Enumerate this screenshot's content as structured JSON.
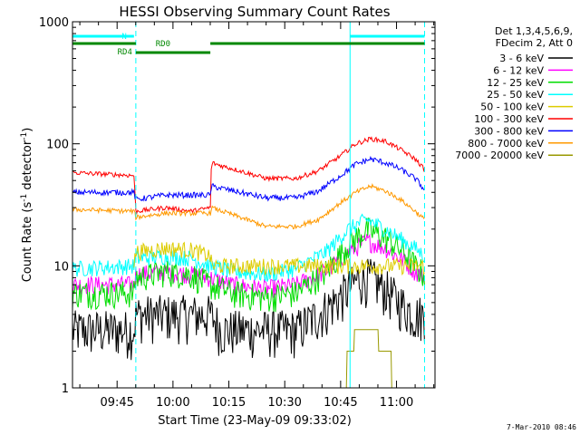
{
  "chart_data": {
    "type": "line",
    "title": "HESSI Observing Summary Count Rates",
    "xlabel": "Start Time (23-May-09 09:33:02)",
    "ylabel_prefix": "Count Rate (s",
    "ylabel_sup1": "-1",
    "ylabel_mid": " detector",
    "ylabel_sup2": "-1",
    "ylabel_suffix": ")",
    "x_axis": {
      "unit": "minutes since 09:33:02",
      "range": [
        0,
        97.3
      ]
    },
    "y_axis": {
      "scale": "log",
      "range": [
        1,
        1000
      ]
    },
    "x_ticks": [
      {
        "label": "09:45",
        "value": 11.97
      },
      {
        "label": "10:00",
        "value": 26.97
      },
      {
        "label": "10:15",
        "value": 41.97
      },
      {
        "label": "10:30",
        "value": 56.97
      },
      {
        "label": "10:45",
        "value": 71.97
      },
      {
        "label": "11:00",
        "value": 86.97
      }
    ],
    "y_ticks": [
      {
        "label": "1000",
        "value": 1000
      },
      {
        "label": "100",
        "value": 100
      },
      {
        "label": "10",
        "value": 10
      },
      {
        "label": "1",
        "value": 1
      }
    ],
    "legend_header": [
      "Det 1,3,4,5,6,9,",
      "FDecim 2, Att 0"
    ],
    "legend_placement": "right",
    "series": [
      {
        "name": "3 - 6 keV",
        "color": "#000000",
        "noise": 0.2,
        "values": [
          [
            0,
            3
          ],
          [
            16.5,
            3
          ],
          [
            17,
            4
          ],
          [
            37,
            4
          ],
          [
            40,
            3
          ],
          [
            60,
            3
          ],
          [
            66,
            4
          ],
          [
            73,
            6
          ],
          [
            77,
            8
          ],
          [
            80,
            8
          ],
          [
            84,
            6.5
          ],
          [
            88,
            5
          ],
          [
            92,
            4
          ],
          [
            94.5,
            4
          ]
        ]
      },
      {
        "name": "6 - 12 keV",
        "color": "#ff00ff",
        "noise": 0.08,
        "values": [
          [
            0,
            7
          ],
          [
            16.5,
            7
          ],
          [
            17,
            8.5
          ],
          [
            25,
            9
          ],
          [
            32,
            8.5
          ],
          [
            37,
            8
          ],
          [
            43,
            7
          ],
          [
            52,
            6.5
          ],
          [
            60,
            7
          ],
          [
            68,
            9
          ],
          [
            74,
            13
          ],
          [
            79,
            16
          ],
          [
            84,
            14
          ],
          [
            89,
            11
          ],
          [
            92,
            9
          ],
          [
            94.5,
            8
          ]
        ]
      },
      {
        "name": "12 - 25 keV",
        "color": "#00dd00",
        "noise": 0.12,
        "values": [
          [
            0,
            6
          ],
          [
            16.5,
            6
          ],
          [
            17,
            8
          ],
          [
            25,
            9
          ],
          [
            32,
            8.5
          ],
          [
            37,
            7
          ],
          [
            43,
            6
          ],
          [
            52,
            5.5
          ],
          [
            60,
            6
          ],
          [
            68,
            9
          ],
          [
            74,
            15
          ],
          [
            79,
            20
          ],
          [
            84,
            17
          ],
          [
            89,
            13
          ],
          [
            92,
            10
          ],
          [
            94.5,
            8.5
          ]
        ]
      },
      {
        "name": "25 - 50 keV",
        "color": "#00ffff",
        "noise": 0.07,
        "values": [
          [
            0,
            9.5
          ],
          [
            16.5,
            10
          ],
          [
            17,
            11.5
          ],
          [
            25,
            12
          ],
          [
            32,
            11.5
          ],
          [
            37,
            10
          ],
          [
            43,
            9
          ],
          [
            52,
            8.5
          ],
          [
            60,
            9.5
          ],
          [
            68,
            13
          ],
          [
            74,
            20
          ],
          [
            79,
            24
          ],
          [
            84,
            20
          ],
          [
            89,
            16
          ],
          [
            92,
            14
          ],
          [
            94.5,
            12
          ]
        ]
      },
      {
        "name": "50 - 100 keV",
        "color": "#ddcc00",
        "noise": 0.07,
        "values": [
          [
            16.5,
            10
          ],
          [
            17,
            13
          ],
          [
            25,
            14
          ],
          [
            32,
            13.5
          ],
          [
            37,
            12
          ],
          [
            37.4,
            10
          ],
          [
            94.5,
            10
          ]
        ]
      },
      {
        "name": "100 - 300 keV",
        "color": "#ff0000",
        "noise": 0.02,
        "values": [
          [
            0,
            58
          ],
          [
            16.5,
            55
          ],
          [
            17,
            28
          ],
          [
            25,
            30
          ],
          [
            32,
            28
          ],
          [
            37,
            30
          ],
          [
            37.3,
            70
          ],
          [
            40,
            66
          ],
          [
            45,
            60
          ],
          [
            52,
            52
          ],
          [
            60,
            52
          ],
          [
            66,
            60
          ],
          [
            72,
            80
          ],
          [
            76,
            100
          ],
          [
            80,
            110
          ],
          [
            84,
            105
          ],
          [
            88,
            90
          ],
          [
            92,
            75
          ],
          [
            94.5,
            62
          ]
        ]
      },
      {
        "name": "300 - 800 keV",
        "color": "#0000ff",
        "noise": 0.025,
        "values": [
          [
            0,
            40
          ],
          [
            16.5,
            40
          ],
          [
            17,
            35
          ],
          [
            25,
            38
          ],
          [
            32,
            38
          ],
          [
            37,
            38
          ],
          [
            37.3,
            45
          ],
          [
            45,
            40
          ],
          [
            52,
            36
          ],
          [
            60,
            36
          ],
          [
            66,
            41
          ],
          [
            72,
            55
          ],
          [
            76,
            68
          ],
          [
            80,
            75
          ],
          [
            84,
            70
          ],
          [
            88,
            62
          ],
          [
            92,
            52
          ],
          [
            94.5,
            42
          ]
        ]
      },
      {
        "name": "800 - 7000 keV",
        "color": "#ff9900",
        "noise": 0.02,
        "values": [
          [
            0,
            29
          ],
          [
            16.5,
            28
          ],
          [
            17,
            25
          ],
          [
            25,
            27
          ],
          [
            32,
            27
          ],
          [
            37,
            27
          ],
          [
            37.3,
            30
          ],
          [
            45,
            25
          ],
          [
            52,
            21
          ],
          [
            60,
            21
          ],
          [
            66,
            24
          ],
          [
            72,
            33
          ],
          [
            76,
            40
          ],
          [
            80,
            45
          ],
          [
            84,
            41
          ],
          [
            88,
            35
          ],
          [
            92,
            28
          ],
          [
            94.5,
            24
          ]
        ]
      },
      {
        "name": "7000 - 20000 keV",
        "color": "#999900",
        "noise": 0,
        "values": [
          [
            73.5,
            1
          ],
          [
            73.7,
            2
          ],
          [
            75.5,
            2
          ],
          [
            75.7,
            3
          ],
          [
            82,
            3
          ],
          [
            82.2,
            2
          ],
          [
            85.5,
            2
          ],
          [
            85.7,
            1
          ]
        ]
      }
    ],
    "attenuator_bars": {
      "N": {
        "start": 0,
        "end": 16.5,
        "label": "N",
        "color": "#00ffff"
      },
      "N2": {
        "start": 74.5,
        "end": 94.5,
        "color": "#00ffff"
      },
      "RD0_a": {
        "start": 0,
        "end": 17,
        "color": "#008800"
      },
      "RD0_b": {
        "start": 37,
        "end": 94.5,
        "label": "RD0",
        "color": "#008800"
      },
      "RD4": {
        "start": 17,
        "end": 37,
        "label": "RD4",
        "color": "#008800"
      }
    },
    "vertical_lines": [
      {
        "x": 17,
        "style": "dashed",
        "color": "#00ffff"
      },
      {
        "x": 74.5,
        "style": "solid",
        "color": "#00ffff"
      },
      {
        "x": 94.5,
        "style": "dashed",
        "color": "#00ffff"
      }
    ]
  },
  "footer": {
    "date_stamp": "7-Mar-2010 08:46"
  }
}
